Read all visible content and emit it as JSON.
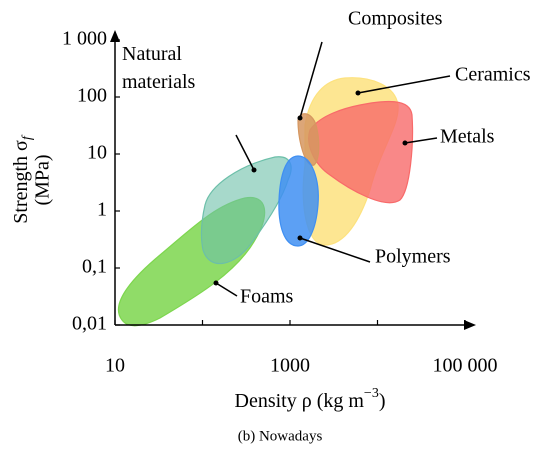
{
  "chart_data": {
    "type": "ashby",
    "caption": "(b) Nowadays",
    "xlabel": {
      "text": "Density ρ (kg m",
      "superscript": "−3",
      "close": ")"
    },
    "ylabel": {
      "text": "Strength σ",
      "subscript": "f",
      "unit": "(MPa)"
    },
    "xscale": "log",
    "yscale": "log",
    "xlim": [
      10,
      100000
    ],
    "ylim": [
      0.01,
      1000
    ],
    "xticks": [
      10,
      1000,
      {
        "value": 100000,
        "label": "100 000"
      }
    ],
    "xminor": [
      100,
      10000
    ],
    "yticks": [
      {
        "value": 0.01,
        "label": "0,01"
      },
      {
        "value": 0.1,
        "label": "0,1"
      },
      1,
      10,
      100,
      {
        "value": 1000,
        "label": "1 000"
      }
    ],
    "regions": [
      {
        "name": "Foams",
        "color": "#7dd64e"
      },
      {
        "name": "Natural materials",
        "color": "#6cbfa9"
      },
      {
        "name": "Ceramics",
        "color": "#fde27f"
      },
      {
        "name": "Metals",
        "color": "#f86a6a"
      },
      {
        "name": "Composites",
        "color": "#d69760"
      },
      {
        "name": "Polymers",
        "color": "#3f8ff2"
      }
    ]
  }
}
